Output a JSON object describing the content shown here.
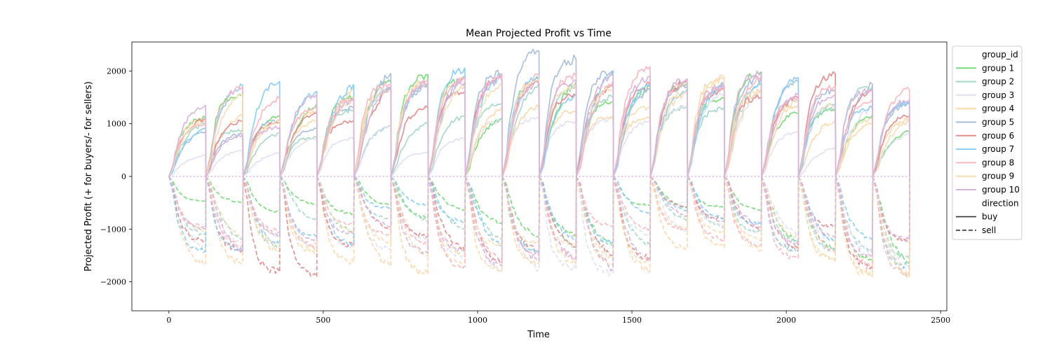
{
  "chart_data": {
    "type": "line",
    "title": "Mean Projected Profit vs Time",
    "xlabel": "Time",
    "ylabel": "Projected Profit (+ for buyers/- for sellers)",
    "xlim": [
      -120,
      2520
    ],
    "ylim": [
      -2550,
      2550
    ],
    "xticks": [
      0,
      500,
      1000,
      1500,
      2000,
      2500
    ],
    "yticks": [
      -2000,
      -1000,
      0,
      1000,
      2000
    ],
    "grid": false,
    "legend": {
      "placement": "outside-right",
      "group_title": "group_id",
      "style_title": "direction",
      "styles": [
        {
          "name": "buy",
          "dash": "solid"
        },
        {
          "name": "sell",
          "dash": "dashed"
        }
      ]
    },
    "period_length": 120,
    "periods": 20,
    "series": [
      {
        "name": "group 1",
        "color": "#77dd77",
        "buy_final": [
          1120,
          1560,
          1150,
          1360,
          1500,
          1800,
          1930,
          1850,
          1100,
          1860,
          1780,
          1420,
          1700,
          1760,
          1480,
          1980,
          1200,
          1250,
          1150,
          850
        ],
        "sell_final": [
          -470,
          -480,
          -680,
          -540,
          -700,
          -550,
          -780,
          -650,
          -900,
          -1150,
          -1100,
          -1250,
          -550,
          -600,
          -580,
          -650,
          -1250,
          -1380,
          -1580,
          -1650
        ]
      },
      {
        "name": "group 2",
        "color": "#a3d9c9",
        "buy_final": [
          1000,
          880,
          820,
          740,
          1250,
          950,
          1000,
          1150,
          1380,
          1750,
          1700,
          1500,
          1650,
          1320,
          1300,
          1750,
          1450,
          1300,
          1700,
          1400
        ],
        "sell_final": [
          -1100,
          -1200,
          -1330,
          -850,
          -1050,
          -800,
          -850,
          -1000,
          -1200,
          -1400,
          -1400,
          -1300,
          -1300,
          -850,
          -950,
          -1050,
          -1250,
          -1420,
          -1400,
          -1550
        ]
      },
      {
        "name": "group 3",
        "color": "#e0e0f4",
        "buy_final": [
          400,
          500,
          450,
          700,
          720,
          950,
          450,
          720,
          1050,
          1100,
          1050,
          1100,
          1050,
          1300,
          1550,
          1650,
          850,
          550,
          1300,
          800
        ],
        "sell_final": [
          -1400,
          -1250,
          -1150,
          -1300,
          -1350,
          -1400,
          -1200,
          -1500,
          -1780,
          -1780,
          -1760,
          -1830,
          -1100,
          -1050,
          -950,
          -900,
          -1100,
          -1200,
          -1450,
          -1750
        ]
      },
      {
        "name": "group 4",
        "color": "#ffd8a8",
        "buy_final": [
          1050,
          1150,
          1060,
          1240,
          1650,
          1650,
          1800,
          1850,
          1300,
          1320,
          1250,
          1150,
          1100,
          1600,
          1880,
          1650,
          1350,
          1050,
          1000,
          1100
        ],
        "sell_final": [
          -1660,
          -1650,
          -1420,
          -1450,
          -1620,
          -1700,
          -1850,
          -1700,
          -1800,
          -1650,
          -1650,
          -1660,
          -1790,
          -1380,
          -1350,
          -1400,
          -1400,
          -1600,
          -1850,
          -1900
        ]
      },
      {
        "name": "group 5",
        "color": "#a7bede",
        "buy_final": [
          850,
          800,
          1050,
          900,
          1300,
          1950,
          1700,
          1900,
          1950,
          2380,
          2230,
          2000,
          1650,
          1700,
          1750,
          1850,
          1800,
          1650,
          1750,
          1380
        ]
      },
      {
        "name": "group 6",
        "color": "#e88b8b",
        "buy_final": [
          1100,
          1050,
          1020,
          1200,
          1060,
          1650,
          1300,
          1600,
          1920,
          1780,
          1550,
          1700,
          1750,
          1800,
          1650,
          1500,
          1500,
          1950,
          1650,
          1150
        ],
        "sell_final": [
          -1230,
          -1400,
          -1810,
          -1900,
          -1300,
          -1000,
          -1130,
          -1400,
          -1650,
          -1420,
          -1350,
          -1500,
          -1550,
          -580,
          -800,
          -1000,
          -1350,
          -950,
          -1700,
          -1200
        ]
      },
      {
        "name": "group 7",
        "color": "#87cefa",
        "buy_final": [
          900,
          1730,
          1800,
          1610,
          1740,
          1650,
          1750,
          2050,
          1900,
          1850,
          1550,
          2000,
          1750,
          1650,
          1750,
          1750,
          1870,
          1350,
          1300,
          1400
        ],
        "sell_final": [
          -1420,
          -1400,
          -1300,
          -1150,
          -1300,
          -600,
          -550,
          -850,
          -1300,
          -1450,
          -1200,
          -1250,
          -700,
          -650,
          -800,
          -900,
          -1400,
          -1250,
          -1200,
          -1700
        ]
      },
      {
        "name": "group 8",
        "color": "#ffb6c1",
        "buy_final": [
          1000,
          1700,
          1480,
          1300,
          1500,
          1750,
          1800,
          1870,
          1950,
          1920,
          1920,
          1800,
          2080,
          1800,
          1700,
          1900,
          1500,
          1700,
          1450,
          1650
        ],
        "sell_final": [
          -950,
          -1300,
          -1050,
          -1350,
          -900,
          -1100,
          -1300,
          -1700,
          -1550,
          -1500,
          -1600,
          -950,
          -1000,
          -1000,
          -1200,
          -1300,
          -1550,
          -1450,
          -1750,
          -1850
        ]
      },
      {
        "name": "group 9",
        "color": "#f5deb3",
        "buy_final": [
          1050,
          1550,
          1050,
          1050,
          1450,
          1650,
          1750,
          1750,
          1750,
          1850,
          1700,
          1650,
          1300,
          1600,
          1850,
          1600,
          1450,
          1350,
          1100,
          1050
        ],
        "sell_final": [
          -1050,
          -1150,
          -1300,
          -1400,
          -1050,
          -1250,
          -1500,
          -1450,
          -1300,
          -1250,
          -1300,
          -1550,
          -1600,
          -1000,
          -1050,
          -1200,
          -1150,
          -1550,
          -1900,
          -1880
        ]
      },
      {
        "name": "group 10",
        "color": "#d8b4dd",
        "buy_final": [
          1350,
          780,
          920,
          1550,
          1450,
          1700,
          1780,
          1780,
          1840,
          1760,
          1820,
          1920,
          1900,
          1850,
          1700,
          1950,
          1550,
          1550,
          1650,
          1450
        ],
        "sell_final": [
          -1000,
          -1420,
          -1100,
          -1200,
          -1080,
          -950,
          -1450,
          -1400,
          -1700,
          -1600,
          -1550,
          -1750,
          -1600,
          -750,
          -850,
          -950,
          -1300,
          -1150,
          -1500,
          -1200
        ]
      }
    ]
  }
}
